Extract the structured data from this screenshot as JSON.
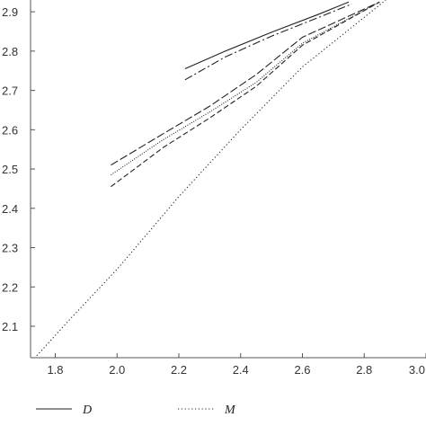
{
  "chart_data": {
    "type": "line",
    "title": "",
    "xlabel": "",
    "ylabel": "",
    "xlim": [
      1.72,
      3.0
    ],
    "ylim": [
      2.02,
      2.93
    ],
    "x_ticks": [
      "1.8",
      "2.0",
      "2.2",
      "2.4",
      "2.6",
      "2.8",
      "3.0"
    ],
    "y_ticks": [
      "2.1",
      "2.2",
      "2.3",
      "2.4",
      "2.5",
      "2.6",
      "2.7",
      "2.8",
      "2.9"
    ],
    "grid": false,
    "legend_position": "bottom",
    "colors": {
      "line": "#222222",
      "axis": "#555555",
      "text": "#333333"
    },
    "series": [
      {
        "name": "D",
        "style": "solid",
        "x": [
          2.22,
          2.35,
          2.5,
          2.65,
          2.75
        ],
        "y": [
          2.755,
          2.8,
          2.848,
          2.893,
          2.925
        ]
      },
      {
        "style": "dashdot",
        "x": [
          2.22,
          2.35,
          2.5,
          2.65,
          2.76
        ],
        "y": [
          2.727,
          2.785,
          2.838,
          2.885,
          2.92
        ]
      },
      {
        "style": "dashed-long",
        "x": [
          1.98,
          2.15,
          2.3,
          2.45,
          2.6,
          2.85
        ],
        "y": [
          2.51,
          2.59,
          2.66,
          2.74,
          2.835,
          2.925
        ]
      },
      {
        "style": "dotted-fine",
        "x": [
          1.98,
          2.15,
          2.3,
          2.45,
          2.6,
          2.85
        ],
        "y": [
          2.485,
          2.575,
          2.645,
          2.72,
          2.82,
          2.925
        ]
      },
      {
        "style": "dashed",
        "x": [
          1.98,
          2.15,
          2.3,
          2.45,
          2.6,
          2.85
        ],
        "y": [
          2.455,
          2.555,
          2.63,
          2.71,
          2.815,
          2.925
        ]
      },
      {
        "name": "M",
        "style": "dotted",
        "x": [
          1.74,
          1.85,
          2.0,
          2.2,
          2.4,
          2.6,
          2.87
        ],
        "y": [
          2.025,
          2.12,
          2.245,
          2.43,
          2.6,
          2.76,
          2.93
        ]
      }
    ],
    "legend": [
      {
        "label": "D",
        "style": "solid"
      },
      {
        "label": "M",
        "style": "dotted"
      }
    ]
  }
}
